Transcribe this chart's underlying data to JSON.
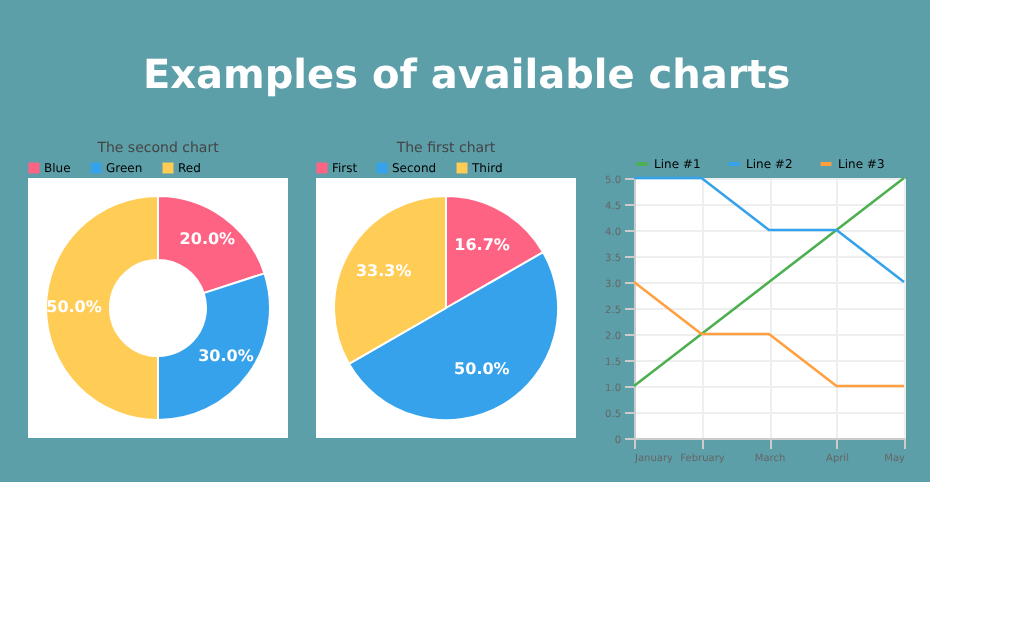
{
  "chart_data": [
    {
      "type": "donut",
      "title": "The second chart",
      "annotations": [
        "Examples of available charts"
      ],
      "categories": [
        "Blue",
        "Green",
        "Red"
      ],
      "values": [
        20.0,
        30.0,
        50.0
      ],
      "colors": [
        "#ff6384",
        "#36a2eb",
        "#ffcd56"
      ],
      "value_labels": [
        "20.0%",
        "30.0%",
        "50.0%"
      ],
      "legend": "top"
    },
    {
      "type": "pie",
      "title": "The first chart",
      "categories": [
        "First",
        "Second",
        "Third"
      ],
      "values": [
        16.7,
        50.0,
        33.3
      ],
      "colors": [
        "#ff6384",
        "#36a2eb",
        "#ffcd56"
      ],
      "value_labels": [
        "16.7%",
        "50.0%",
        "33.3%"
      ],
      "legend": "top"
    },
    {
      "type": "line",
      "categories": [
        "January",
        "February",
        "March",
        "April",
        "May"
      ],
      "legend": "top",
      "grid": true,
      "marker": "none",
      "line_style": "solid",
      "ylim": [
        0,
        5
      ],
      "yticks": [
        0,
        0.5,
        {
          "value": 1,
          "label": "1.0"
        },
        {
          "value": 1.5,
          "label": "1.5"
        },
        {
          "value": 2,
          "label": "2.0"
        },
        {
          "value": 2.5,
          "label": "2.5"
        },
        {
          "value": 3,
          "label": "3.0"
        },
        {
          "value": 3.5,
          "label": "3.5"
        },
        {
          "value": 4,
          "label": "4.0"
        },
        {
          "value": 4.5,
          "label": "4.5"
        },
        {
          "value": 5,
          "label": "5.0"
        }
      ],
      "series": [
        {
          "name": "Line #1",
          "color": "#4caf50",
          "values": [
            1,
            2,
            3,
            4,
            5
          ]
        },
        {
          "name": "Line #2",
          "color": "#36a2eb",
          "values": [
            5,
            5,
            4,
            4,
            3
          ]
        },
        {
          "name": "Line #3",
          "color": "#ff9f40",
          "values": [
            3,
            2,
            2,
            1,
            1
          ]
        }
      ]
    }
  ]
}
